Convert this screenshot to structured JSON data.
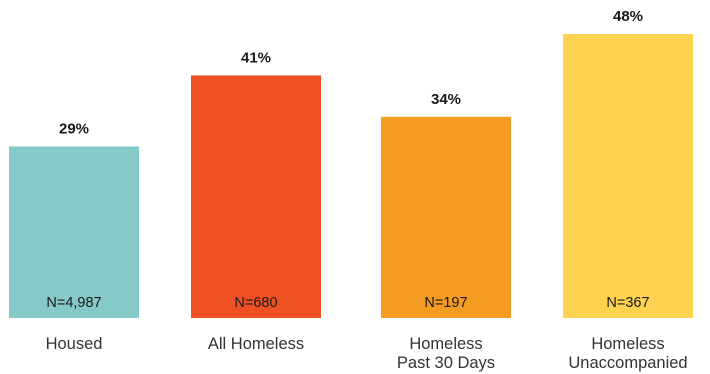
{
  "chart_data": {
    "type": "bar",
    "categories": [
      [
        "Housed"
      ],
      [
        "All Homeless"
      ],
      [
        "Homeless",
        "Past 30 Days"
      ],
      [
        "Homeless",
        "Unaccompanied"
      ]
    ],
    "values": [
      29,
      41,
      34,
      48
    ],
    "value_labels": [
      "29%",
      "41%",
      "34%",
      "48%"
    ],
    "n_labels": [
      "N=4,987",
      "N=680",
      "N=197",
      "N=367"
    ],
    "colors": [
      "#86c9c9",
      "#f05124",
      "#f59d22",
      "#fdd34f"
    ],
    "ylim": [
      0,
      48
    ],
    "grid": false,
    "legend": "none"
  }
}
